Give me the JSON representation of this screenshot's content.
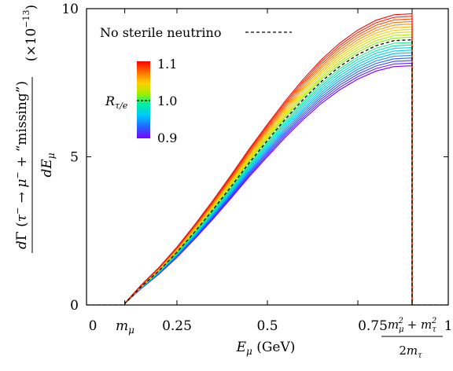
{
  "chart_data": {
    "type": "line",
    "xlabel": "E_μ (GeV)",
    "ylabel": "dΓ(τ⁻ → μ⁻ + “missing”) / dE_μ",
    "y_multiplier": "(×10⁻¹³)",
    "xlim": [
      0,
      1
    ],
    "ylim": [
      0,
      10
    ],
    "x_ticks": [
      {
        "value": 0,
        "label": "0"
      },
      {
        "value": 0.25,
        "label": "0.25"
      },
      {
        "value": 0.5,
        "label": "0.5"
      },
      {
        "value": 0.75,
        "label": "0.75"
      },
      {
        "value": 1.0,
        "label": "1"
      }
    ],
    "x_special_ticks": [
      {
        "value": 0.1057,
        "label": "m_μ"
      },
      {
        "value": 0.9,
        "label": "(m_μ² + m_τ²) / 2m_τ"
      }
    ],
    "y_ticks": [
      {
        "value": 0,
        "label": "0"
      },
      {
        "value": 5,
        "label": "5"
      },
      {
        "value": 10,
        "label": "10"
      }
    ],
    "m_mu": 0.1057,
    "endpoint": 0.9,
    "reference_peak": 8.95,
    "R_values": [
      0.9,
      0.91,
      0.92,
      0.93,
      0.94,
      0.95,
      0.96,
      0.97,
      0.98,
      0.99,
      1.0,
      1.01,
      1.02,
      1.03,
      1.04,
      1.05,
      1.06,
      1.07,
      1.08,
      1.09,
      1.1
    ],
    "reference_curve": {
      "name": "No sterile neutrino",
      "x": [
        0.1057,
        0.15,
        0.2,
        0.25,
        0.3,
        0.35,
        0.4,
        0.45,
        0.5,
        0.55,
        0.6,
        0.65,
        0.7,
        0.75,
        0.8,
        0.85,
        0.9
      ],
      "y": [
        0.05,
        0.6,
        1.15,
        1.78,
        2.48,
        3.22,
        4.0,
        4.8,
        5.55,
        6.28,
        6.95,
        7.55,
        8.05,
        8.45,
        8.75,
        8.92,
        8.95
      ]
    },
    "legend": {
      "reference_label": "No sterile neutrino",
      "colorbar_title": "R_τ/e",
      "colorbar_ticks": [
        "1.1",
        "1.0",
        "0.9"
      ]
    },
    "colors": {
      "reference": "#000000",
      "colormap": [
        "#7a00ff",
        "#2a5cff",
        "#00c8ff",
        "#00f0a0",
        "#a0f000",
        "#ffd000",
        "#ff7000",
        "#ff0000"
      ]
    }
  }
}
